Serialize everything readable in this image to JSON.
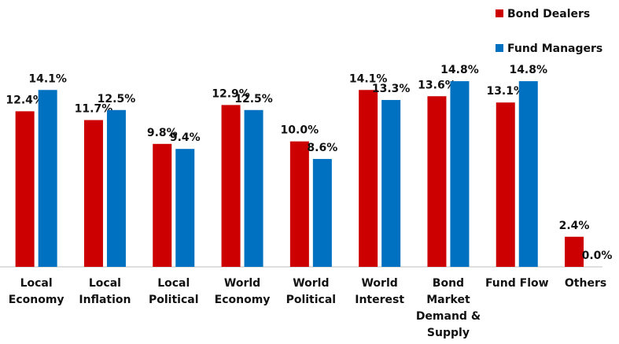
{
  "chart_data": {
    "type": "bar",
    "categories": [
      "Local Economy",
      "Local Inflation",
      "Local Political",
      "World Economy",
      "World Political",
      "World Interest",
      "Bond Market Demand & Supply",
      "Fund Flow",
      "Others"
    ],
    "series": [
      {
        "name": "Bond Dealers",
        "color": "#cc0000",
        "values": [
          12.4,
          11.7,
          9.8,
          12.9,
          10.0,
          14.1,
          13.6,
          13.1,
          2.4
        ],
        "value_labels": [
          "12.4%",
          "11.7%",
          "9.8%",
          "12.9%",
          "10.0%",
          "14.1%",
          "13.6%",
          "13.1%",
          "2.4%"
        ]
      },
      {
        "name": "Fund Managers",
        "color": "#0070c0",
        "values": [
          14.1,
          12.5,
          9.4,
          12.5,
          8.6,
          13.3,
          14.8,
          14.8,
          0.0
        ],
        "value_labels": [
          "14.1%",
          "12.5%",
          "9.4%",
          "12.5%",
          "8.6%",
          "13.3%",
          "14.8%",
          "14.8%",
          "0.0%"
        ]
      }
    ],
    "ylim": [
      0,
      16
    ],
    "legend": "top-right"
  }
}
